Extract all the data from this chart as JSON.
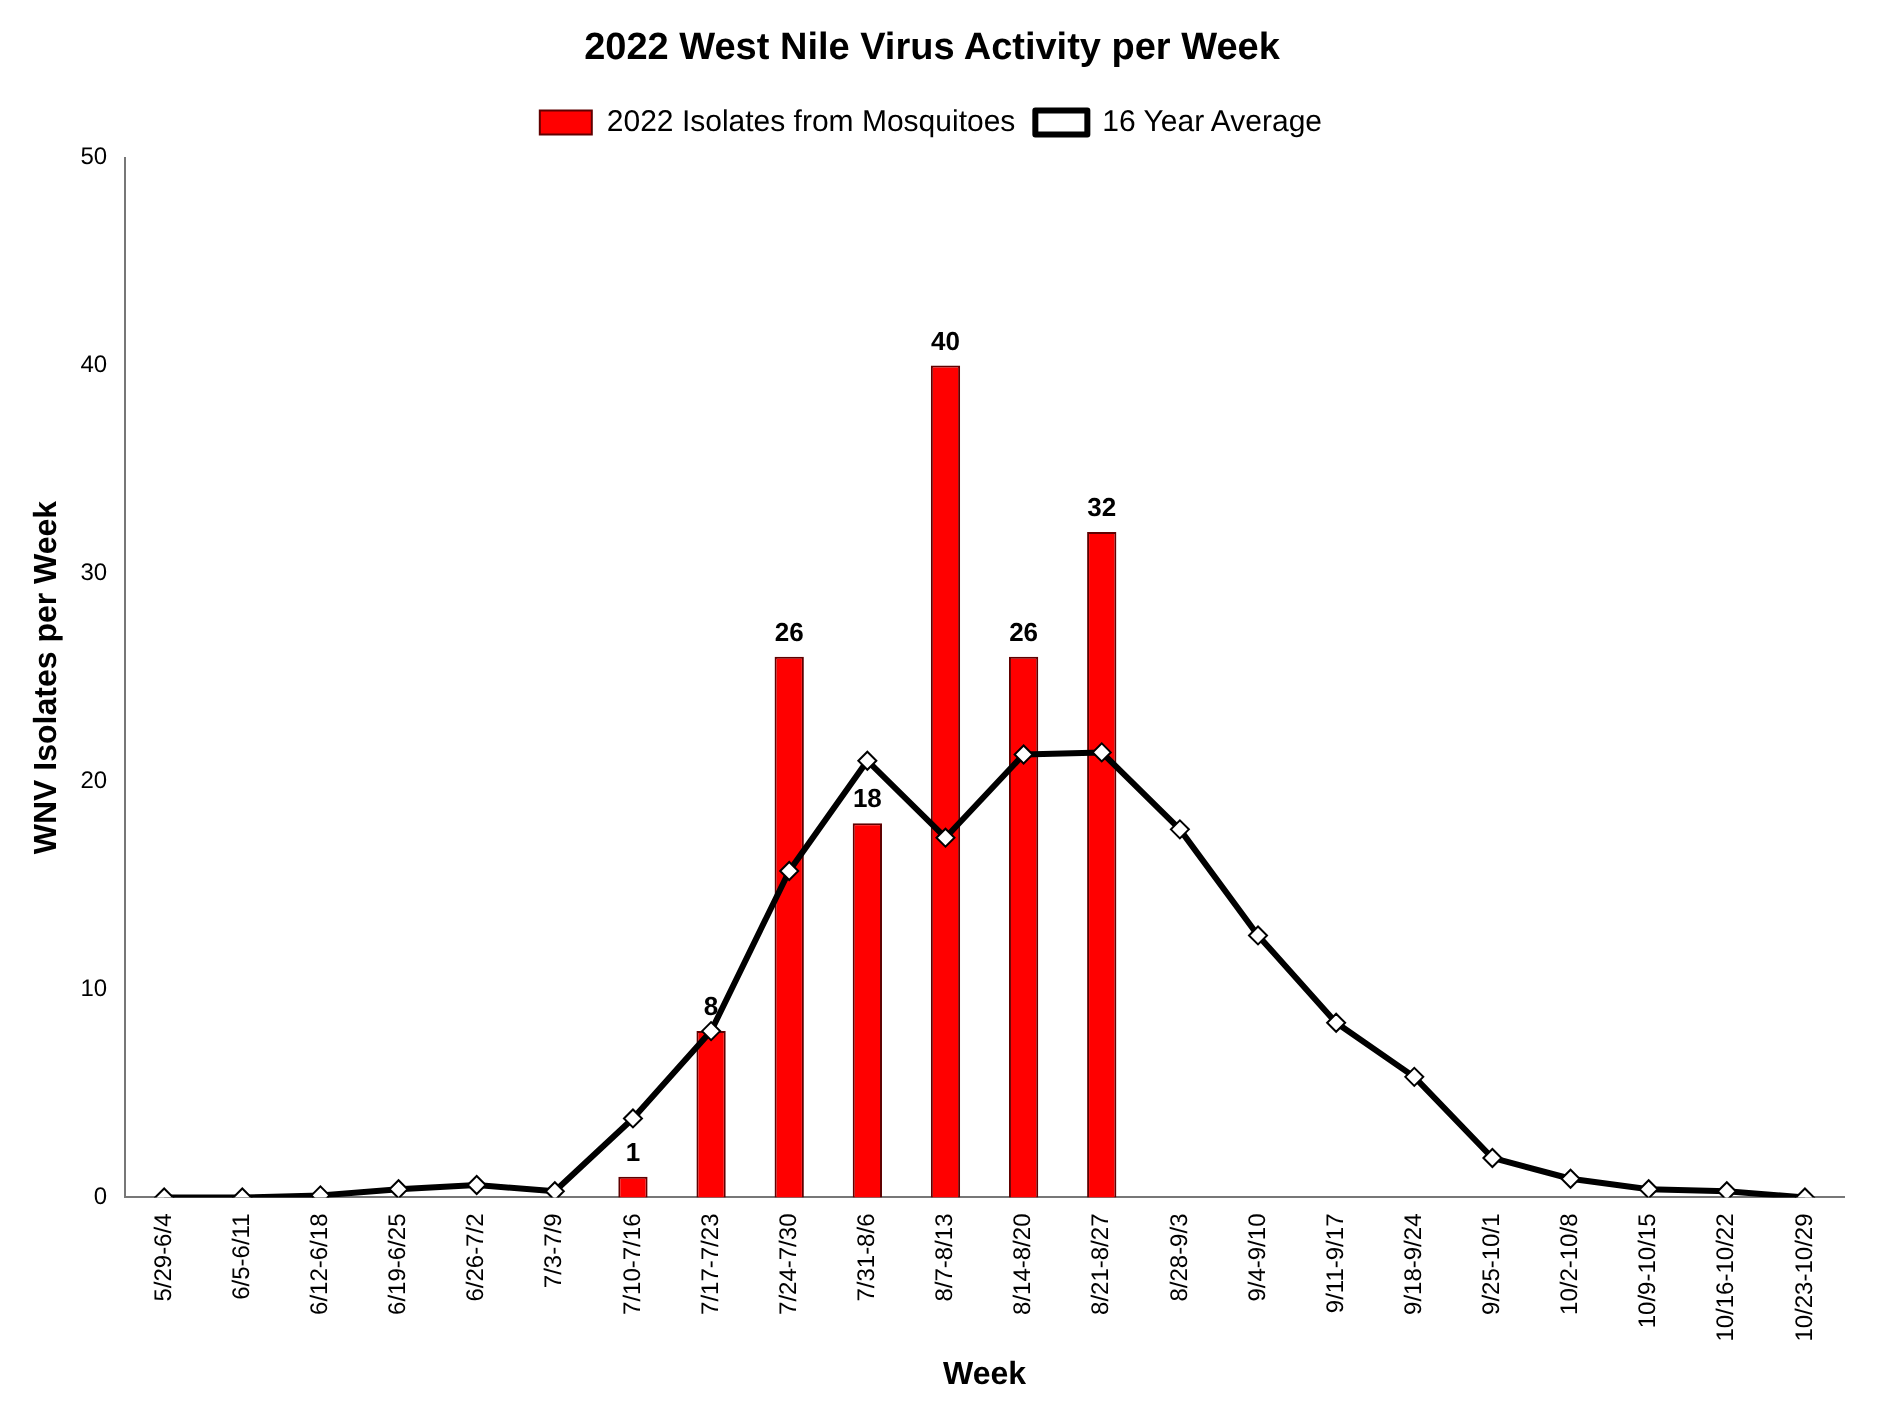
{
  "chart_data": {
    "type": "bar",
    "title": "2022 West Nile Virus Activity per Week",
    "xlabel": "Week",
    "ylabel": "WNV Isolates per Week",
    "categories": [
      "5/29-6/4",
      "6/5-6/11",
      "6/12-6/18",
      "6/19-6/25",
      "6/26-7/2",
      "7/3-7/9",
      "7/10-7/16",
      "7/17-7/23",
      "7/24-7/30",
      "7/31-8/6",
      "8/7-8/13",
      "8/14-8/20",
      "8/21-8/27",
      "8/28-9/3",
      "9/4-9/10",
      "9/11-9/17",
      "9/18-9/24",
      "9/25-10/1",
      "10/2-10/8",
      "10/9-10/15",
      "10/16-10/22",
      "10/23-10/29"
    ],
    "series": [
      {
        "name": "2022 Isolates from Mosquitoes",
        "color": "#ff0000",
        "values": [
          null,
          null,
          null,
          null,
          null,
          null,
          1,
          8,
          26,
          18,
          40,
          26,
          32,
          null,
          null,
          null,
          null,
          null,
          null,
          null,
          null,
          null
        ],
        "value_labels": [
          null,
          null,
          null,
          null,
          null,
          null,
          "1",
          "8",
          "26",
          "18",
          "40",
          "26",
          "32",
          null,
          null,
          null,
          null,
          null,
          null,
          null,
          null,
          null
        ]
      },
      {
        "name": "16 Year Average",
        "type": "line",
        "color": "#000000",
        "marker": "diamond",
        "values": [
          0,
          0,
          0.1,
          0.4,
          0.6,
          0.3,
          3.8,
          8.0,
          15.7,
          21.0,
          17.3,
          21.3,
          21.4,
          17.7,
          12.6,
          8.4,
          5.8,
          1.9,
          0.9,
          0.4,
          0.3,
          0
        ]
      }
    ],
    "ylim": [
      0,
      50
    ],
    "yticks": [
      0,
      10,
      20,
      30,
      40,
      50
    ],
    "grid": false,
    "legend": "top"
  }
}
